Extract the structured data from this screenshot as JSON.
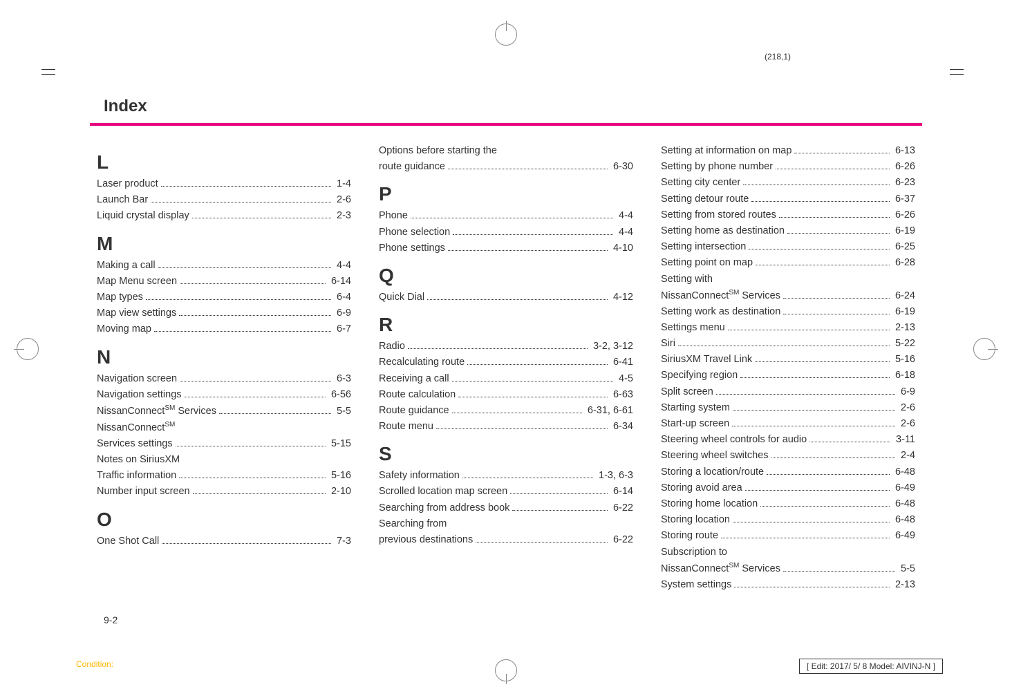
{
  "pageRef": "(218,1)",
  "header": {
    "title": "Index"
  },
  "colors": {
    "accent": "#e6007e",
    "condition": "#ffb700",
    "text": "#333333"
  },
  "sections": {
    "L": [
      {
        "label": "Laser product",
        "page": "1-4"
      },
      {
        "label": "Launch Bar",
        "page": "2-6"
      },
      {
        "label": "Liquid crystal display",
        "page": "2-3"
      }
    ],
    "M": [
      {
        "label": "Making a call",
        "page": "4-4"
      },
      {
        "label": "Map Menu screen",
        "page": "6-14"
      },
      {
        "label": "Map types",
        "page": "6-4"
      },
      {
        "label": "Map view settings",
        "page": "6-9"
      },
      {
        "label": "Moving map",
        "page": "6-7"
      }
    ],
    "N": [
      {
        "label": "Navigation screen",
        "page": "6-3"
      },
      {
        "label": "Navigation settings",
        "page": "6-56"
      },
      {
        "label": "NissanConnect",
        "sm": "SM",
        "label2": " Services",
        "page": "5-5"
      },
      {
        "labelOnly": "NissanConnect",
        "sm": "SM"
      },
      {
        "label": "Services settings",
        "page": "5-15"
      },
      {
        "labelOnly": "Notes on SiriusXM"
      },
      {
        "label": "Traffic information",
        "page": "5-16"
      },
      {
        "label": "Number input screen",
        "page": "2-10"
      }
    ],
    "O": [
      {
        "label": "One Shot Call",
        "page": "7-3"
      }
    ],
    "O2": [
      {
        "labelOnly": "Options before starting the"
      },
      {
        "label": "route guidance",
        "page": "6-30"
      }
    ],
    "P": [
      {
        "label": "Phone",
        "page": "4-4"
      },
      {
        "label": "Phone selection",
        "page": "4-4"
      },
      {
        "label": "Phone settings",
        "page": "4-10"
      }
    ],
    "Q": [
      {
        "label": "Quick Dial",
        "page": "4-12"
      }
    ],
    "R": [
      {
        "label": "Radio",
        "page": "3-2, 3-12"
      },
      {
        "label": "Recalculating route",
        "page": "6-41"
      },
      {
        "label": "Receiving a call",
        "page": "4-5"
      },
      {
        "label": "Route calculation",
        "page": "6-63"
      },
      {
        "label": "Route guidance",
        "page": "6-31, 6-61"
      },
      {
        "label": "Route menu",
        "page": "6-34"
      }
    ],
    "S": [
      {
        "label": "Safety information",
        "page": "1-3, 6-3"
      },
      {
        "label": "Scrolled location map screen",
        "page": "6-14"
      },
      {
        "label": "Searching from address book",
        "page": "6-22"
      },
      {
        "labelOnly": "Searching from"
      },
      {
        "label": "previous destinations",
        "page": "6-22"
      }
    ],
    "S2": [
      {
        "label": "Setting at information on map",
        "page": "6-13"
      },
      {
        "label": "Setting by phone number",
        "page": "6-26"
      },
      {
        "label": "Setting city center",
        "page": "6-23"
      },
      {
        "label": "Setting detour route",
        "page": "6-37"
      },
      {
        "label": "Setting from stored routes",
        "page": "6-26"
      },
      {
        "label": "Setting home as destination",
        "page": "6-19"
      },
      {
        "label": "Setting intersection",
        "page": "6-25"
      },
      {
        "label": "Setting point on map",
        "page": "6-28"
      },
      {
        "labelOnly": "Setting with"
      },
      {
        "label": "NissanConnect",
        "sm": "SM",
        "label2": " Services",
        "page": "6-24"
      },
      {
        "label": "Setting work as destination",
        "page": "6-19"
      },
      {
        "label": "Settings menu",
        "page": "2-13"
      },
      {
        "label": "Siri ",
        "page": "5-22"
      },
      {
        "label": "SiriusXM Travel Link",
        "page": "5-16"
      },
      {
        "label": "Specifying region",
        "page": "6-18"
      },
      {
        "label": "Split screen",
        "page": "6-9"
      },
      {
        "label": "Starting system",
        "page": "2-6"
      },
      {
        "label": "Start-up screen",
        "page": "2-6"
      },
      {
        "label": "Steering wheel controls for audio",
        "page": "3-11"
      },
      {
        "label": "Steering wheel switches",
        "page": "2-4"
      },
      {
        "label": "Storing a location/route",
        "page": "6-48"
      },
      {
        "label": "Storing avoid area",
        "page": "6-49"
      },
      {
        "label": "Storing home location",
        "page": "6-48"
      },
      {
        "label": "Storing location",
        "page": "6-48"
      },
      {
        "label": "Storing route",
        "page": "6-49"
      },
      {
        "labelOnly": "Subscription to"
      },
      {
        "label": "NissanConnect",
        "sm": "SM",
        "label2": " Services",
        "page": "5-5"
      },
      {
        "label": "System settings",
        "page": "2-13"
      }
    ]
  },
  "pageNumber": "9-2",
  "conditionLabel": "Condition:",
  "editBox": "[ Edit: 2017/ 5/ 8   Model: AIVINJ-N ]"
}
